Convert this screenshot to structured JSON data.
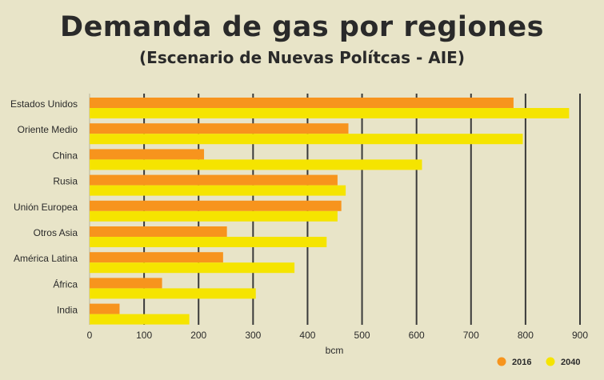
{
  "chart_data": {
    "type": "bar",
    "orientation": "horizontal",
    "title": "Demanda de gas por regiones",
    "subtitle": "(Escenario de Nuevas Polítcas - AIE)",
    "xlabel": "bcm",
    "ylabel": "",
    "xlim": [
      0,
      900
    ],
    "xticks": [
      0,
      100,
      200,
      300,
      400,
      500,
      600,
      700,
      800,
      900
    ],
    "grid": "vertical",
    "legend_position": "bottom-right",
    "categories": [
      "Estados Unidos",
      "Oriente Medio",
      "China",
      "Rusia",
      "Unión Europea",
      "Otros Asia",
      "América Latina",
      "África",
      "India"
    ],
    "series": [
      {
        "name": "2016",
        "color": "#f7941d",
        "values": [
          778,
          475,
          210,
          455,
          462,
          252,
          245,
          133,
          55
        ]
      },
      {
        "name": "2040",
        "color": "#f5e400",
        "values": [
          880,
          795,
          610,
          470,
          455,
          435,
          376,
          305,
          183
        ]
      }
    ]
  }
}
